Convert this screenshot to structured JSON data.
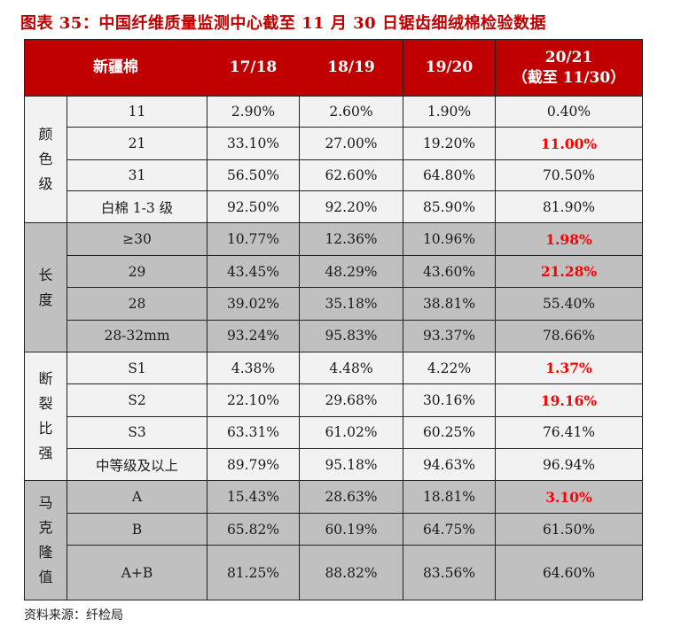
{
  "title": "图表 35：中国纤维质量监测中心截至 11 月 30 日锯齿细绒棉检验数据",
  "header": {
    "first": "新疆棉",
    "seasons": [
      "17/18",
      "18/19",
      "19/20",
      "20/21"
    ],
    "last_note": "（截至 11/30）"
  },
  "groups": [
    {
      "name": "颜色级",
      "name_lines": [
        "颜",
        "色",
        "级"
      ],
      "shade": "light",
      "rows": [
        {
          "label": "11",
          "values": [
            "2.90%",
            "2.60%",
            "1.90%",
            "0.40%"
          ],
          "highlight": false
        },
        {
          "label": "21",
          "values": [
            "33.10%",
            "27.00%",
            "19.20%",
            "11.00%"
          ],
          "highlight": true
        },
        {
          "label": "31",
          "values": [
            "56.50%",
            "62.60%",
            "64.80%",
            "70.50%"
          ],
          "highlight": false
        },
        {
          "label": "白棉 1-3 级",
          "values": [
            "92.50%",
            "92.20%",
            "85.90%",
            "81.90%"
          ],
          "highlight": false
        }
      ]
    },
    {
      "name": "长度",
      "name_lines": [
        "长",
        "度"
      ],
      "shade": "gray",
      "rows": [
        {
          "label": "≥30",
          "values": [
            "10.77%",
            "12.36%",
            "10.96%",
            "1.98%"
          ],
          "highlight": true
        },
        {
          "label": "29",
          "values": [
            "43.45%",
            "48.29%",
            "43.60%",
            "21.28%"
          ],
          "highlight": true
        },
        {
          "label": "28",
          "values": [
            "39.02%",
            "35.18%",
            "38.81%",
            "55.40%"
          ],
          "highlight": false
        },
        {
          "label": "28-32mm",
          "values": [
            "93.24%",
            "95.83%",
            "93.37%",
            "78.66%"
          ],
          "highlight": false
        }
      ]
    },
    {
      "name": "断裂比强",
      "name_lines": [
        "断",
        "裂",
        "比",
        "强"
      ],
      "shade": "light",
      "rows": [
        {
          "label": "S1",
          "values": [
            "4.38%",
            "4.48%",
            "4.22%",
            "1.37%"
          ],
          "highlight": true
        },
        {
          "label": "S2",
          "values": [
            "22.10%",
            "29.68%",
            "30.16%",
            "19.16%"
          ],
          "highlight": true
        },
        {
          "label": "S3",
          "values": [
            "63.31%",
            "61.02%",
            "60.25%",
            "76.41%"
          ],
          "highlight": false
        },
        {
          "label": "中等级及以上",
          "values": [
            "89.79%",
            "95.18%",
            "94.63%",
            "96.94%"
          ],
          "highlight": false
        }
      ]
    },
    {
      "name": "马克隆值",
      "name_lines": [
        "马",
        "克",
        "隆",
        "值"
      ],
      "shade": "gray",
      "rows": [
        {
          "label": "A",
          "values": [
            "15.43%",
            "28.63%",
            "18.81%",
            "3.10%"
          ],
          "highlight": true
        },
        {
          "label": "B",
          "values": [
            "65.82%",
            "60.19%",
            "64.75%",
            "61.50%"
          ],
          "highlight": false
        },
        {
          "label": "A+B",
          "values": [
            "81.25%",
            "88.82%",
            "83.56%",
            "64.60%"
          ],
          "highlight": false
        }
      ]
    }
  ],
  "source": "资料来源：纤检局",
  "colors": {
    "header_bg": "#c00000",
    "highlight_text": "#ff0000",
    "gray_band": "#c0c0c0",
    "light_band": "#f2f2f2"
  }
}
